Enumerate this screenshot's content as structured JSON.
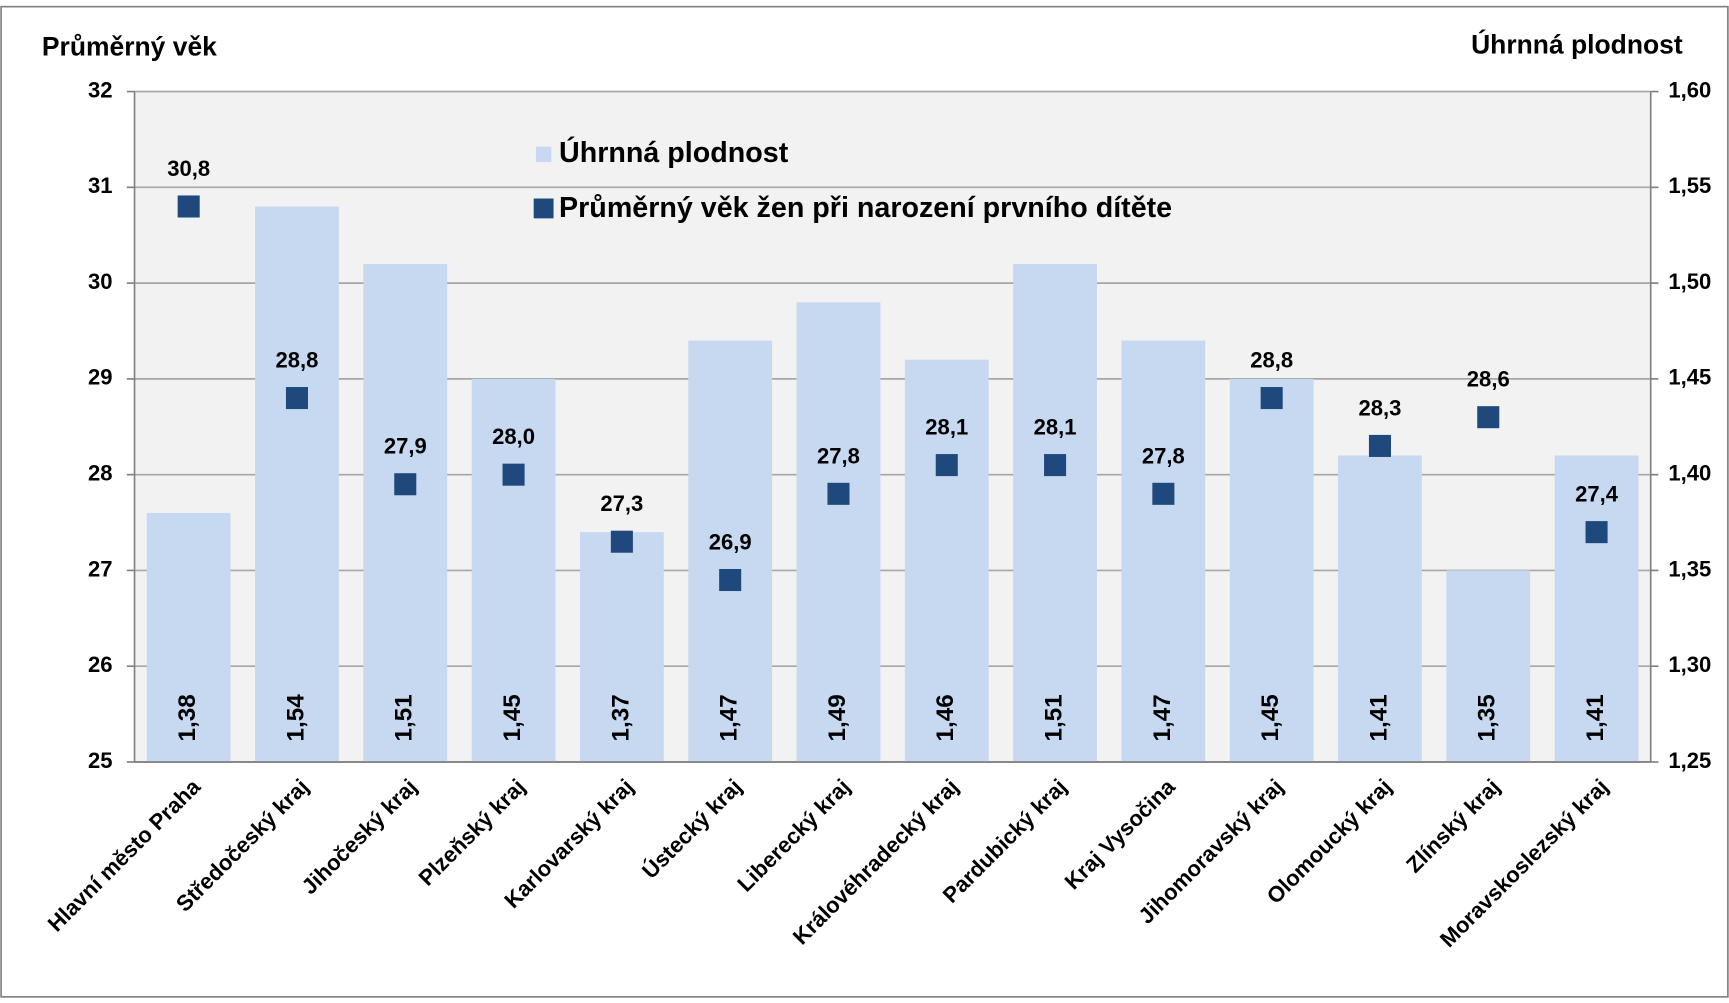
{
  "chart_data": {
    "type": "bar",
    "y_label": "Průměrný věk",
    "y2_label": "Úhrnná plodnost",
    "categories": [
      "Hlavní město Praha",
      "Středočeský kraj",
      "Jihočeský kraj",
      "Plzeňský kraj",
      "Karlovarský kraj",
      "Ústecký kraj",
      "Liberecký kraj",
      "Královéhradecký kraj",
      "Pardubický kraj",
      "Kraj Vysočina",
      "Jihomoravský kraj",
      "Olomoucký kraj",
      "Zlínský kraj",
      "Moravskoslezský kraj"
    ],
    "series": [
      {
        "name": "Úhrnná plodnost",
        "type": "bar",
        "axis": "y2",
        "color": "#c6d9f1",
        "values": [
          1.38,
          1.54,
          1.51,
          1.45,
          1.37,
          1.47,
          1.49,
          1.46,
          1.51,
          1.47,
          1.45,
          1.41,
          1.35,
          1.41
        ],
        "value_labels": [
          "1,38",
          "1,54",
          "1,51",
          "1,45",
          "1,37",
          "1,47",
          "1,49",
          "1,46",
          "1,51",
          "1,47",
          "1,45",
          "1,41",
          "1,35",
          "1,41"
        ]
      },
      {
        "name": "Průměrný věk žen při narození prvního dítěte",
        "type": "scatter",
        "axis": "y",
        "color": "#1f497d",
        "values": [
          30.8,
          28.8,
          27.9,
          28.0,
          27.3,
          26.9,
          27.8,
          28.1,
          28.1,
          27.8,
          28.8,
          28.3,
          28.6,
          27.4
        ],
        "value_labels": [
          "30,8",
          "28,8",
          "27,9",
          "28,0",
          "27,3",
          "26,9",
          "27,8",
          "28,1",
          "28,1",
          "27,8",
          "28,8",
          "28,3",
          "28,6",
          "27,4"
        ]
      }
    ],
    "ylim": [
      25,
      32
    ],
    "yticks": [
      25,
      26,
      27,
      28,
      29,
      30,
      31,
      32
    ],
    "y2lim": [
      1.25,
      1.6
    ],
    "y2ticks": [
      {
        "value": 1.25,
        "label": "1,25"
      },
      {
        "value": 1.3,
        "label": "1,30"
      },
      {
        "value": 1.35,
        "label": "1,35"
      },
      {
        "value": 1.4,
        "label": "1,40"
      },
      {
        "value": 1.45,
        "label": "1,45"
      },
      {
        "value": 1.5,
        "label": "1,50"
      },
      {
        "value": 1.55,
        "label": "1,55"
      },
      {
        "value": 1.6,
        "label": "1,60"
      }
    ],
    "grid": true,
    "legend": "top"
  }
}
